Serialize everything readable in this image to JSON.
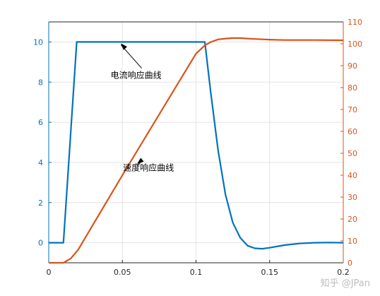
{
  "chart_data": {
    "type": "line",
    "grid": true,
    "x_ticks": [
      "0",
      "0.05",
      "0.1",
      "0.15",
      "0.2"
    ],
    "xlim": [
      0,
      0.2
    ],
    "y_left": {
      "lim": [
        -1,
        11
      ],
      "ticks": [
        "0",
        "2",
        "4",
        "6",
        "8",
        "10"
      ],
      "color": "#0072BD"
    },
    "y_right": {
      "lim": [
        0,
        110
      ],
      "ticks": [
        "0",
        "10",
        "20",
        "30",
        "40",
        "50",
        "60",
        "70",
        "80",
        "90",
        "100",
        "110"
      ],
      "color": "#D95319"
    },
    "series": [
      {
        "axis": "left",
        "color": "#0072BD",
        "x": [
          0,
          0.01,
          0.019,
          0.02,
          0.05,
          0.1,
          0.106,
          0.11,
          0.115,
          0.12,
          0.125,
          0.13,
          0.135,
          0.14,
          0.145,
          0.15,
          0.16,
          0.17,
          0.18,
          0.19,
          0.2
        ],
        "y": [
          0,
          0,
          10,
          10,
          10,
          10,
          10,
          7.5,
          4.6,
          2.4,
          1.0,
          0.25,
          -0.15,
          -0.28,
          -0.3,
          -0.25,
          -0.12,
          -0.04,
          0,
          0.01,
          0
        ]
      },
      {
        "axis": "right",
        "color": "#D95319",
        "x": [
          0,
          0.01,
          0.015,
          0.02,
          0.05,
          0.1,
          0.106,
          0.11,
          0.115,
          0.12,
          0.125,
          0.13,
          0.135,
          0.14,
          0.15,
          0.16,
          0.18,
          0.2
        ],
        "y": [
          0,
          0,
          2,
          6,
          40,
          95.5,
          99.3,
          100.8,
          102,
          102.4,
          102.6,
          102.6,
          102.4,
          102.2,
          101.9,
          101.7,
          101.7,
          101.6
        ]
      }
    ],
    "annotations": [
      {
        "text": "电流响应曲线",
        "target": [
          0.049,
          10
        ]
      },
      {
        "text": "速度响应曲线",
        "target": [
          0.06,
          45.8
        ]
      }
    ]
  },
  "watermark": "知乎 @JPan"
}
